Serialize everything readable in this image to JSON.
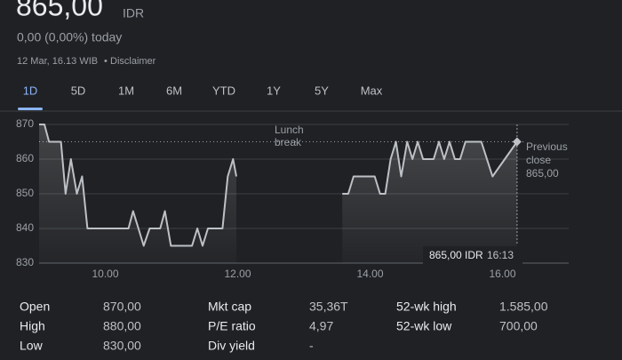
{
  "header": {
    "price": "865,00",
    "currency": "IDR",
    "change": "0,00 (0,00%) today",
    "timestamp": "12 Mar, 16.13 WIB",
    "separator": "•",
    "disclaimer": "Disclaimer"
  },
  "tabs": [
    "1D",
    "5D",
    "1M",
    "6M",
    "YTD",
    "1Y",
    "5Y",
    "Max"
  ],
  "selected_tab": 0,
  "chart_data": {
    "type": "line",
    "x": [
      9.0,
      9.08,
      9.15,
      9.33,
      9.4,
      9.48,
      9.57,
      9.65,
      9.73,
      10.35,
      10.42,
      10.5,
      10.58,
      10.67,
      10.83,
      10.9,
      10.99,
      11.31,
      11.39,
      11.47,
      11.55,
      11.77,
      11.85,
      11.93,
      11.98,
      null,
      13.58,
      13.67,
      13.75,
      14.07,
      14.15,
      14.23,
      14.31,
      14.39,
      14.47,
      14.56,
      14.64,
      14.72,
      14.8,
      14.96,
      15.04,
      15.12,
      15.2,
      15.28,
      15.36,
      15.44,
      15.68,
      15.85,
      16.22
    ],
    "values": [
      870,
      870,
      865,
      865,
      850,
      860,
      850,
      855,
      840,
      840,
      845,
      840,
      835,
      840,
      840,
      845,
      835,
      835,
      840,
      835,
      840,
      840,
      855,
      860,
      855,
      null,
      850,
      850,
      855,
      855,
      850,
      850,
      860,
      865,
      855,
      865,
      860,
      865,
      860,
      860,
      865,
      860,
      865,
      860,
      860,
      865,
      865,
      855,
      865
    ],
    "color": "#bdc1c6",
    "xlim": [
      9,
      17
    ],
    "ylim": [
      830,
      870
    ],
    "xticks": [
      {
        "value": 10,
        "label": "10.00"
      },
      {
        "value": 12,
        "label": "12.00"
      },
      {
        "value": 14,
        "label": "14.00"
      },
      {
        "value": 16,
        "label": "16.00"
      }
    ],
    "yticks": [
      830,
      840,
      850,
      860,
      870
    ],
    "grid": true,
    "lunch_label": [
      "Lunch",
      "break"
    ],
    "reference_line": {
      "value": 865,
      "label": [
        "Previous",
        "close"
      ],
      "value_label": "865,00"
    },
    "tooltip": {
      "value_label": "865,00 IDR",
      "time": "16:13"
    }
  },
  "stats": [
    [
      {
        "label": "Open",
        "value": "870,00"
      },
      {
        "label": "High",
        "value": "880,00"
      },
      {
        "label": "Low",
        "value": "830,00"
      }
    ],
    [
      {
        "label": "Mkt cap",
        "value": "35,36T"
      },
      {
        "label": "P/E ratio",
        "value": "4,97"
      },
      {
        "label": "Div yield",
        "value": "-"
      }
    ],
    [
      {
        "label": "52-wk high",
        "value": "1.585,00"
      },
      {
        "label": "52-wk low",
        "value": "700,00"
      }
    ]
  ]
}
